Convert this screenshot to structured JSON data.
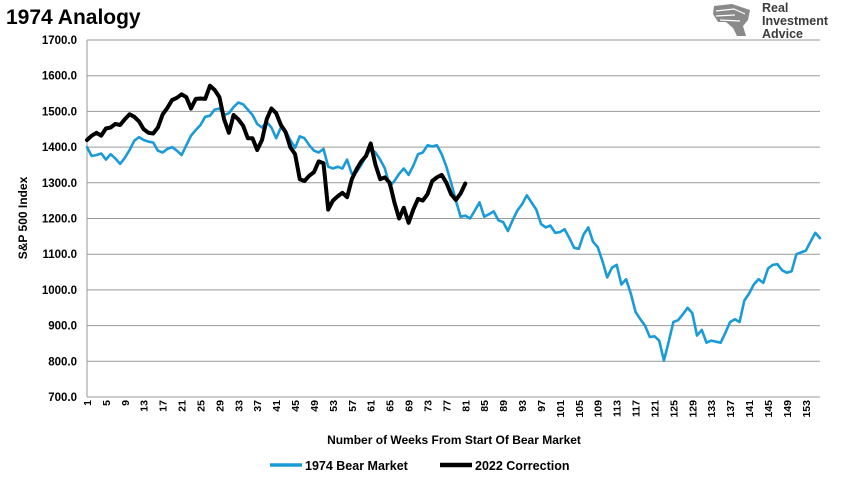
{
  "header": {
    "title": "1974 Analogy",
    "logo_lines": [
      "Real",
      "Investment",
      "Advice"
    ]
  },
  "chart_data": {
    "type": "line",
    "title": "1974 Analogy",
    "xlabel": "Number of Weeks From Start Of Bear Market",
    "ylabel": "S&P 500 Index",
    "ylim": [
      700,
      1700
    ],
    "xlim": [
      1,
      156
    ],
    "y_ticks": [
      "1700.0",
      "1600.0",
      "1500.0",
      "1400.0",
      "1300.0",
      "1200.0",
      "1100.0",
      "1000.0",
      "900.0",
      "800.0",
      "700.0"
    ],
    "x_ticks": [
      1,
      5,
      9,
      13,
      17,
      21,
      25,
      29,
      33,
      37,
      41,
      45,
      49,
      53,
      57,
      61,
      65,
      69,
      73,
      77,
      81,
      85,
      89,
      93,
      97,
      101,
      105,
      109,
      113,
      117,
      121,
      125,
      129,
      133,
      137,
      141,
      145,
      149,
      153
    ],
    "grid": "horizontal",
    "legend_position": "bottom",
    "series": [
      {
        "name": "1974 Bear Market",
        "color": "#1a9bd7",
        "x": [
          1,
          2,
          3,
          4,
          5,
          6,
          7,
          8,
          9,
          10,
          11,
          12,
          13,
          14,
          15,
          16,
          17,
          18,
          19,
          20,
          21,
          22,
          23,
          24,
          25,
          26,
          27,
          28,
          29,
          30,
          31,
          32,
          33,
          34,
          35,
          36,
          37,
          38,
          39,
          40,
          41,
          42,
          43,
          44,
          45,
          46,
          47,
          48,
          49,
          50,
          51,
          52,
          53,
          54,
          55,
          56,
          57,
          58,
          59,
          60,
          61,
          62,
          63,
          64,
          65,
          66,
          67,
          68,
          69,
          70,
          71,
          72,
          73,
          74,
          75,
          76,
          77,
          78,
          79,
          80,
          81,
          82,
          83,
          84,
          85,
          86,
          87,
          88,
          89,
          90,
          91,
          92,
          93,
          94,
          95,
          96,
          97,
          98,
          99,
          100,
          101,
          102,
          103,
          104,
          105,
          106,
          107,
          108,
          109,
          110,
          111,
          112,
          113,
          114,
          115,
          116,
          117,
          118,
          119,
          120,
          121,
          122,
          123,
          124,
          125,
          126,
          127,
          128,
          129,
          130,
          131,
          132,
          133,
          134,
          135,
          136,
          137,
          138,
          139,
          140,
          141,
          142,
          143,
          144,
          145,
          146,
          147,
          148,
          149,
          150,
          151,
          152,
          153,
          154,
          155,
          156
        ],
        "values": [
          1400,
          1375,
          1378,
          1382,
          1365,
          1380,
          1368,
          1353,
          1370,
          1392,
          1418,
          1428,
          1420,
          1415,
          1413,
          1390,
          1385,
          1395,
          1400,
          1390,
          1378,
          1405,
          1432,
          1448,
          1462,
          1485,
          1488,
          1505,
          1508,
          1490,
          1495,
          1512,
          1525,
          1520,
          1505,
          1490,
          1465,
          1455,
          1470,
          1455,
          1425,
          1455,
          1445,
          1420,
          1398,
          1430,
          1425,
          1405,
          1390,
          1385,
          1395,
          1345,
          1340,
          1345,
          1340,
          1365,
          1325,
          1330,
          1350,
          1375,
          1395,
          1385,
          1365,
          1340,
          1290,
          1305,
          1325,
          1340,
          1322,
          1348,
          1380,
          1385,
          1405,
          1402,
          1405,
          1380,
          1345,
          1300,
          1250,
          1205,
          1208,
          1200,
          1222,
          1245,
          1205,
          1212,
          1220,
          1195,
          1190,
          1165,
          1195,
          1222,
          1240,
          1265,
          1245,
          1225,
          1185,
          1175,
          1180,
          1160,
          1162,
          1170,
          1145,
          1118,
          1115,
          1155,
          1175,
          1135,
          1120,
          1080,
          1035,
          1062,
          1070,
          1015,
          1030,
          990,
          938,
          918,
          900,
          868,
          870,
          858,
          802,
          855,
          910,
          915,
          932,
          950,
          935,
          872,
          888,
          852,
          858,
          855,
          852,
          880,
          910,
          918,
          910,
          970,
          990,
          1015,
          1030,
          1020,
          1060,
          1070,
          1072,
          1055,
          1048,
          1052,
          1100,
          1105,
          1110,
          1135,
          1160,
          1145
        ]
      },
      {
        "name": "2022 Correction",
        "color": "#000000",
        "x": [
          1,
          2,
          3,
          4,
          5,
          6,
          7,
          8,
          9,
          10,
          11,
          12,
          13,
          14,
          15,
          16,
          17,
          18,
          19,
          20,
          21,
          22,
          23,
          24,
          25,
          26,
          27,
          28,
          29,
          30,
          31,
          32,
          33,
          34,
          35,
          36,
          37,
          38,
          39,
          40,
          41,
          42,
          43,
          44,
          45,
          46,
          47,
          48,
          49,
          50,
          51,
          52,
          53,
          54,
          55,
          56,
          57,
          58,
          59,
          60,
          61,
          62,
          63,
          64,
          65,
          66,
          67,
          68,
          69,
          70,
          71,
          72,
          73,
          74,
          75,
          76,
          77,
          78,
          79,
          80,
          81
        ],
        "values": [
          1420,
          1432,
          1440,
          1432,
          1452,
          1455,
          1465,
          1462,
          1478,
          1492,
          1485,
          1472,
          1450,
          1440,
          1438,
          1455,
          1492,
          1510,
          1532,
          1538,
          1548,
          1540,
          1508,
          1535,
          1536,
          1535,
          1572,
          1560,
          1540,
          1478,
          1440,
          1490,
          1478,
          1460,
          1425,
          1425,
          1392,
          1420,
          1478,
          1508,
          1495,
          1462,
          1442,
          1400,
          1380,
          1310,
          1305,
          1320,
          1330,
          1360,
          1355,
          1225,
          1250,
          1262,
          1272,
          1260,
          1310,
          1338,
          1360,
          1375,
          1410,
          1350,
          1310,
          1315,
          1300,
          1245,
          1200,
          1230,
          1188,
          1225,
          1255,
          1250,
          1268,
          1305,
          1315,
          1322,
          1300,
          1268,
          1252,
          1270,
          1298
        ]
      }
    ]
  }
}
